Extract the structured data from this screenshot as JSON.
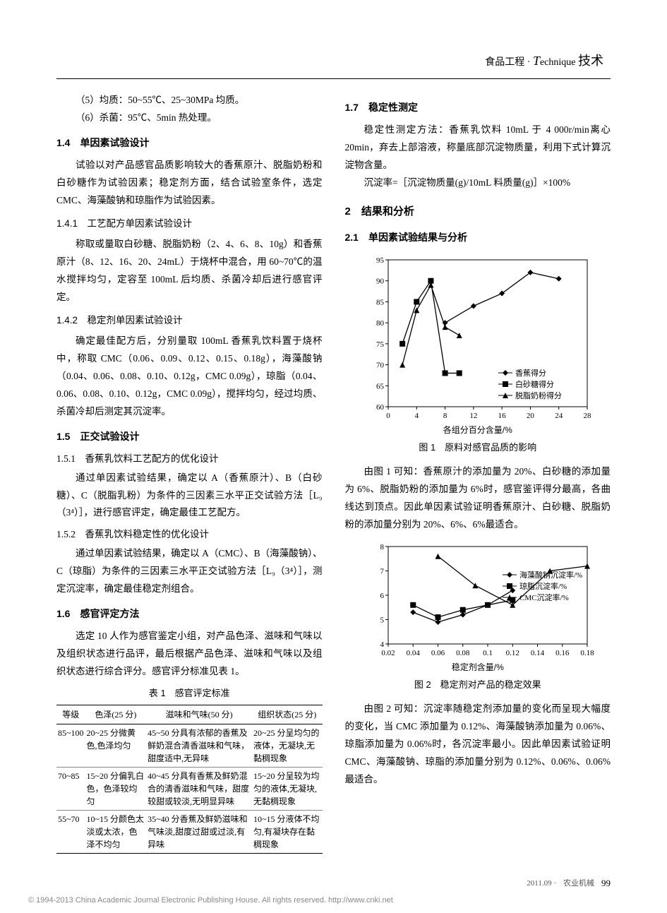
{
  "header": {
    "category": "食品工程",
    "dot": "·",
    "italicT": "T",
    "english": "echnique",
    "chinese": "技术"
  },
  "leftCol": {
    "p_step5": "（5）均质：50~55℃、25~30MPa 均质。",
    "p_step6": "（6）杀菌：95℃、5min 热处理。",
    "h14": "1.4　单因素试验设计",
    "p14": "试验以对产品感官品质影响较大的香蕉原汁、脱脂奶粉和白砂糖作为试验因素；稳定剂方面，结合试验室条件，选定 CMC、海藻酸钠和琼脂作为试验因素。",
    "h141": "1.4.1　工艺配方单因素试验设计",
    "p141": "称取或量取白砂糖、脱脂奶粉（2、4、6、8、10g）和香蕉原汁（8、12、16、20、24mL）于烧杯中混合，用 60~70℃的温水搅拌均匀，定容至 100mL 后均质、杀菌冷却后进行感官评定。",
    "h142": "1.4.2　稳定剂单因素试验设计",
    "p142": "确定最佳配方后，分别量取 100mL 香蕉乳饮料置于烧杯中，称取 CMC（0.06、0.09、0.12、0.15、0.18g），海藻酸钠（0.04、0.06、0.08、0.10、0.12g，CMC 0.09g），琼脂（0.04、0.06、0.08、0.10、0.12g，CMC 0.09g），搅拌均匀，经过均质、杀菌冷却后测定其沉淀率。",
    "h15": "1.5　正交试验设计",
    "h151": "1.5.1　香蕉乳饮料工艺配方的优化设计",
    "p151": "通过单因素试验结果，确定以 A（香蕉原汁）、B（白砂糖）、C（脱脂乳粉）为条件的三因素三水平正交试验方法［L₉（3⁴）］，进行感官评定，确定最佳工艺配方。",
    "h152": "1.5.2　香蕉乳饮料稳定性的优化设计",
    "p152": "通过单因素试验结果，确定以 A（CMC）、B（海藻酸钠）、C（琼脂）为条件的三因素三水平正交试验方法［L₉（3⁴）］，测定沉淀率，确定最佳稳定剂组合。",
    "h16": "1.6　感官评定方法",
    "p16": "选定 10 人作为感官鉴定小组，对产品色泽、滋味和气味以及组织状态进行品评，最后根据产品色泽、滋味和气味以及组织状态进行综合评分。感官评分标准见表 1。",
    "table1": {
      "caption": "表 1　感官评定标准",
      "headers": [
        "等级",
        "色泽(25 分)",
        "滋味和气味(50 分)",
        "组织状态(25 分)"
      ],
      "rows": [
        [
          "85~100",
          "20~25 分微黄色,色泽均匀",
          "45~50 分具有浓郁的香蕉及鲜奶混合清香滋味和气味，甜度适中,无异味",
          "20~25 分呈均匀的液体，无凝块,无黏稠现象"
        ],
        [
          "70~85",
          "15~20 分偏乳白色，色泽较均匀",
          "40~45 分具有香蕉及鲜奶混合的清香滋味和气味，甜度较甜或较淡,无明显异味",
          "15~20 分呈较为均匀的液体,无凝块,无黏稠现象"
        ],
        [
          "55~70",
          "10~15 分颜色太淡或太浓，色泽不均匀",
          "35~40 分香蕉及鲜奶滋味和气味淡,甜度过甜或过淡,有异味",
          "10~15 分液体不均匀,有凝块存在黏稠现象"
        ]
      ]
    }
  },
  "rightCol": {
    "h17": "1.7　稳定性测定",
    "p17a": "稳定性测定方法：香蕉乳饮料 10mL 于 4 000r/min离心 20min，弃去上部溶液，称量底部沉淀物质量，利用下式计算沉淀物含量。",
    "p17b": "沉淀率=［沉淀物质量(g)/10mL 料质量(g)］×100%",
    "h2": "2　结果和分析",
    "h21": "2.1　单因素试验结果与分析",
    "fig1": {
      "caption": "图 1　原料对感官品质的影响",
      "xlabel": "各组分百分含量/%",
      "ylim": [
        60,
        95
      ],
      "ytick_step": 5,
      "xlim": [
        0,
        28
      ],
      "xtick_step": 4,
      "grid_color": "#e0e0e0",
      "background_color": "#ffffff",
      "line_color": "#000000",
      "series": [
        {
          "name": "香蕉得分",
          "marker": "diamond",
          "x": [
            8,
            12,
            16,
            20,
            24
          ],
          "y": [
            80,
            84,
            87,
            92,
            90.5
          ]
        },
        {
          "name": "白砂糖得分",
          "marker": "square",
          "x": [
            2,
            4,
            6,
            8,
            10
          ],
          "y": [
            75,
            85,
            90,
            68,
            68
          ]
        },
        {
          "name": "脱脂奶粉得分",
          "marker": "triangle",
          "x": [
            2,
            4,
            6,
            8,
            10
          ],
          "y": [
            70,
            83,
            89,
            79,
            77
          ]
        }
      ]
    },
    "p_fig1": "由图 1 可知：香蕉原汁的添加量为 20%、白砂糖的添加量为 6%、脱脂奶粉的添加量为 6%时，感官鉴评得分最高，各曲线达到顶点。因此单因素试验证明香蕉原汁、白砂糖、脱脂奶粉的添加量分别为 20%、6%、6%最适合。",
    "fig2": {
      "caption": "图 2　稳定剂对产品的稳定效果",
      "xlabel": "稳定剂含量/%",
      "ylim": [
        4,
        8
      ],
      "ytick_step": 1,
      "xlim": [
        0.02,
        0.18
      ],
      "xticks": [
        0.02,
        0.04,
        0.06,
        0.08,
        0.1,
        0.12,
        0.14,
        0.16,
        0.18
      ],
      "grid_color": "#e0e0e0",
      "background_color": "#ffffff",
      "line_color": "#000000",
      "series": [
        {
          "name": "海藻酸钠沉淀率/%",
          "marker": "diamond",
          "x": [
            0.04,
            0.06,
            0.08,
            0.1,
            0.12
          ],
          "y": [
            5.3,
            4.9,
            5.2,
            5.6,
            6.2
          ]
        },
        {
          "name": "琼脂沉淀率/%",
          "marker": "square",
          "x": [
            0.04,
            0.06,
            0.08,
            0.1,
            0.12
          ],
          "y": [
            5.6,
            5.1,
            5.4,
            5.6,
            5.8
          ]
        },
        {
          "name": "CMC沉淀率/%",
          "marker": "triangle",
          "x": [
            0.06,
            0.09,
            0.12,
            0.15,
            0.18
          ],
          "y": [
            7.6,
            6.4,
            5.6,
            7.0,
            7.2
          ]
        }
      ]
    },
    "p_fig2": "由图 2 可知：沉淀率随稳定剂添加量的变化而呈现大幅度的变化，当 CMC 添加量为 0.12%、海藻酸钠添加量为 0.06%、琼脂添加量为 0.06%时，各沉淀率最小。因此单因素试验证明 CMC、海藻酸钠、琼脂的添加量分别为 0.12%、0.06%、0.06%最适合。"
  },
  "footer": {
    "issue": "2011.09 ·",
    "mag": "农业机械",
    "page": "99"
  },
  "copyright": "© 1994-2013 China Academic Journal Electronic Publishing House. All rights reserved.    http://www.cnki.net"
}
